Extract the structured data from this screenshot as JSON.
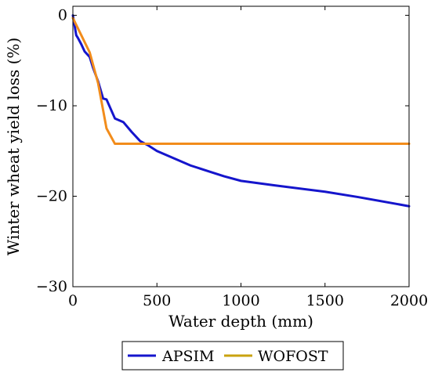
{
  "chart_data": {
    "type": "line",
    "title": "",
    "xlabel": "Water depth (mm)",
    "ylabel": "Winter wheat yield loss (%)",
    "xlim": [
      0,
      2000
    ],
    "ylim": [
      -30,
      1
    ],
    "xticks": [
      0,
      500,
      1000,
      1500,
      2000
    ],
    "yticks": [
      0,
      -10,
      -20,
      -30
    ],
    "xtick_labels": [
      "0",
      "500",
      "1000",
      "1500",
      "2000"
    ],
    "ytick_labels": [
      "0",
      "−10",
      "−20",
      "−30"
    ],
    "grid": false,
    "legend_position": "bottom-center",
    "series": [
      {
        "name": "APSIM",
        "color": "#1515cc",
        "x": [
          0,
          20,
          30,
          50,
          70,
          100,
          120,
          150,
          180,
          200,
          250,
          300,
          350,
          400,
          450,
          500,
          600,
          700,
          800,
          900,
          1000,
          1200,
          1500,
          1700,
          2000
        ],
        "y": [
          0,
          -2.2,
          -2.5,
          -3.2,
          -4.0,
          -4.6,
          -5.8,
          -7.3,
          -9.2,
          -9.3,
          -11.4,
          -11.8,
          -12.9,
          -13.9,
          -14.4,
          -15.0,
          -15.8,
          -16.6,
          -17.2,
          -17.8,
          -18.3,
          -18.8,
          -19.5,
          -20.1,
          -21.1
        ]
      },
      {
        "name": "WOFOST",
        "color": "#f28c1b",
        "legend_color": "#c9a20f",
        "x": [
          0,
          50,
          100,
          150,
          200,
          250,
          2000
        ],
        "y": [
          -0.3,
          -2.2,
          -4.1,
          -7.5,
          -12.5,
          -14.2,
          -14.2
        ]
      }
    ]
  }
}
